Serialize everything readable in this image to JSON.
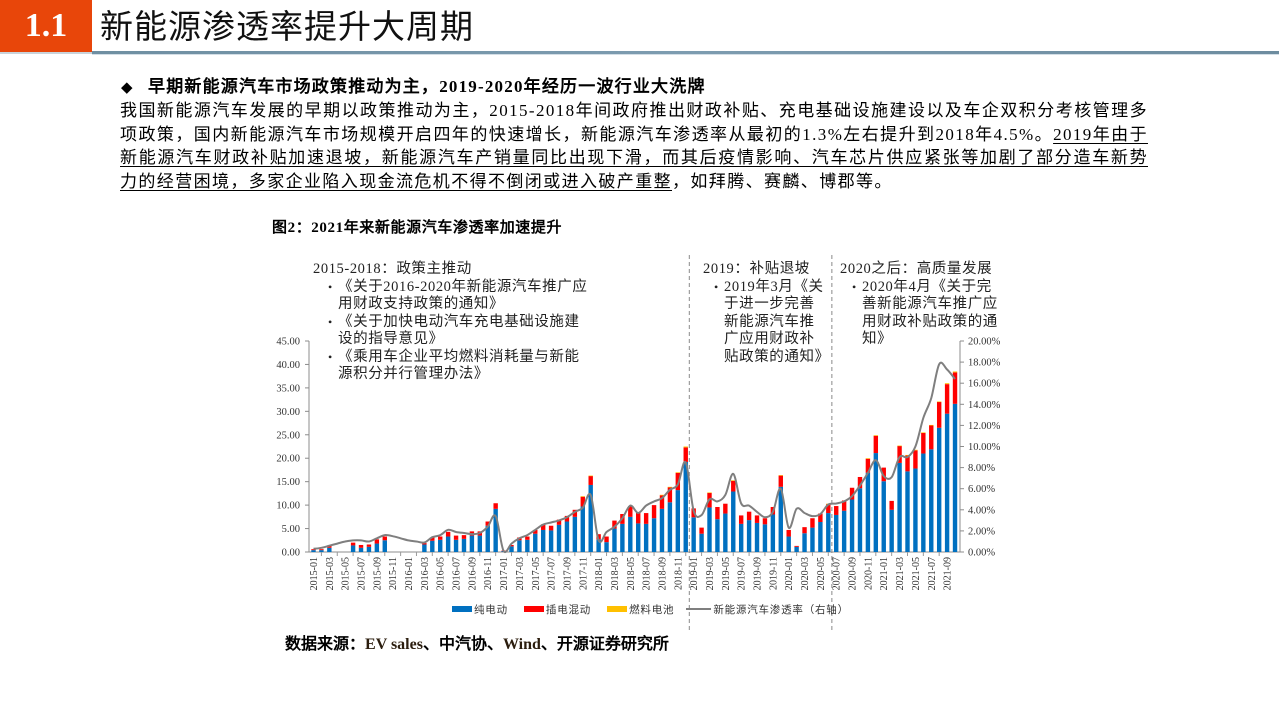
{
  "header": {
    "section_number": "1.1",
    "title": "新能源渗透率提升大周期",
    "accent_color": "#E8460A"
  },
  "body": {
    "bullet_icon": "◆",
    "heading": "早期新能源汽车市场政策推动为主，2019-2020年经历一波行业大洗牌",
    "lines": [
      [
        {
          "text": "我国新能源汽车发展的早期以政策推动为主，2015-2018年间政府推出财政补贴、充电基础设施建设以及车企双积分考核管理多",
          "underline": false
        }
      ],
      [
        {
          "text": "项政策，国内新能源汽车市场规模开启四年的快速增长，新能源汽车渗透率从最初的1.3%左右提升到2018年4.5%。",
          "underline": false
        },
        {
          "text": "2019年由于",
          "underline": true
        }
      ],
      [
        {
          "text": "新能源汽车财政补贴加速退坡，新能源汽车产销量同比出现下滑，而其后疫情影响、汽车芯片供应紧张等加剧了部分造车新势",
          "underline": true
        }
      ],
      [
        {
          "text": "力的经营困境，多家企业陷入现金流危机不得不倒闭或进入破产重整",
          "underline": true
        },
        {
          "text": "，如拜腾、赛麟、博郡等。",
          "underline": false
        }
      ]
    ]
  },
  "figure": {
    "title": "图2：2021年来新能源汽车渗透率加速提升",
    "source": {
      "label": "数据来源：",
      "parts": [
        "EV sales",
        "、中汽协、",
        "Wind",
        "、开源证券研究所"
      ]
    }
  },
  "chart_data": {
    "type": "bar",
    "subtype": "stacked bar + line (dual axis)",
    "title": "图2：2021年来新能源汽车渗透率加速提升",
    "xlabel": "",
    "ylabel": "",
    "ylim": [
      0,
      45
    ],
    "y2lim": [
      0,
      20
    ],
    "yticks": [
      "0.00",
      "5.00",
      "10.00",
      "15.00",
      "20.00",
      "25.00",
      "30.00",
      "35.00",
      "40.00",
      "45.00"
    ],
    "y2ticks": [
      "0.00%",
      "2.00%",
      "4.00%",
      "6.00%",
      "8.00%",
      "10.00%",
      "12.00%",
      "14.00%",
      "16.00%",
      "18.00%",
      "20.00%"
    ],
    "grid": false,
    "legend_position": "bottom",
    "x": [
      "2015-01",
      "2015-02",
      "2015-03",
      "2015-04",
      "2015-05",
      "2015-06",
      "2015-07",
      "2015-08",
      "2015-09",
      "2015-10",
      "2015-11",
      "2015-12",
      "2016-01",
      "2016-02",
      "2016-03",
      "2016-04",
      "2016-05",
      "2016-06",
      "2016-07",
      "2016-08",
      "2016-09",
      "2016-10",
      "2016-11",
      "2016-12",
      "2017-01",
      "2017-02",
      "2017-03",
      "2017-04",
      "2017-05",
      "2017-06",
      "2017-07",
      "2017-08",
      "2017-09",
      "2017-10",
      "2017-11",
      "2017-12",
      "2018-01",
      "2018-02",
      "2018-03",
      "2018-04",
      "2018-05",
      "2018-06",
      "2018-07",
      "2018-08",
      "2018-09",
      "2018-10",
      "2018-11",
      "2018-12",
      "2019-01",
      "2019-02",
      "2019-03",
      "2019-04",
      "2019-05",
      "2019-06",
      "2019-07",
      "2019-08",
      "2019-09",
      "2019-10",
      "2019-11",
      "2019-12",
      "2020-01",
      "2020-02",
      "2020-03",
      "2020-04",
      "2020-05",
      "2020-06",
      "2020-07",
      "2020-08",
      "2020-09",
      "2020-10",
      "2020-11",
      "2020-12",
      "2021-01",
      "2021-02",
      "2021-03",
      "2021-04",
      "2021-05",
      "2021-06",
      "2021-07",
      "2021-08",
      "2021-09",
      "2021-10"
    ],
    "series": [
      {
        "name": "纯电动",
        "type": "bar",
        "stack": "sales",
        "axis": "left",
        "color": "#0070C0",
        "values": [
          0.4,
          0.4,
          0.9,
          null,
          null,
          1.4,
          0.9,
          1.1,
          1.8,
          2.5,
          null,
          null,
          null,
          null,
          1.6,
          2.4,
          2.6,
          3.3,
          2.6,
          2.8,
          3.5,
          3.5,
          5.6,
          9.2,
          0.2,
          1.2,
          2.5,
          2.6,
          3.9,
          4.7,
          4.6,
          5.8,
          6.5,
          7.5,
          9.7,
          14.3,
          2.7,
          2.1,
          5.0,
          6.0,
          7.5,
          6.1,
          6.0,
          7.2,
          9.2,
          10.6,
          13.2,
          19.2,
          7.4,
          3.9,
          9.5,
          7.0,
          8.2,
          12.9,
          6.0,
          6.8,
          6.2,
          5.9,
          8.0,
          13.9,
          3.3,
          1.1,
          4.0,
          5.2,
          6.4,
          8.3,
          7.9,
          8.8,
          11.2,
          13.6,
          16.9,
          21.1,
          15.1,
          9.0,
          19.0,
          17.2,
          17.8,
          21.0,
          21.9,
          26.5,
          29.5,
          31.6
        ]
      },
      {
        "name": "插电混动",
        "type": "bar",
        "stack": "sales",
        "axis": "left",
        "color": "#FF0000",
        "values": [
          0.2,
          0.2,
          0.4,
          null,
          null,
          0.6,
          0.6,
          0.5,
          0.9,
          0.8,
          null,
          null,
          null,
          null,
          0.3,
          0.7,
          0.7,
          1.0,
          0.9,
          0.8,
          0.9,
          0.9,
          0.9,
          1.2,
          0.1,
          0.3,
          0.6,
          0.7,
          0.8,
          1.2,
          1.0,
          1.1,
          1.2,
          1.5,
          2.1,
          1.9,
          1.1,
          1.2,
          1.7,
          2.1,
          2.3,
          2.3,
          2.3,
          2.8,
          2.9,
          3.2,
          3.7,
          3.1,
          1.9,
          1.3,
          3.1,
          2.6,
          2.1,
          2.3,
          1.8,
          1.8,
          1.6,
          1.3,
          1.6,
          2.4,
          1.4,
          0.2,
          1.3,
          2.0,
          1.8,
          1.9,
          1.9,
          2.2,
          2.5,
          2.4,
          3.0,
          3.7,
          2.9,
          1.9,
          3.6,
          3.4,
          3.9,
          4.4,
          5.1,
          5.5,
          6.3,
          6.7
        ]
      },
      {
        "name": "燃料电池",
        "type": "bar",
        "stack": "sales",
        "axis": "left",
        "color": "#FFC000",
        "values": [
          0,
          0,
          0,
          null,
          null,
          0,
          0,
          0,
          0,
          0,
          null,
          null,
          null,
          null,
          0,
          0,
          0,
          0,
          0,
          0,
          0,
          0,
          0,
          0,
          0,
          0,
          0,
          0,
          0,
          0,
          0,
          0,
          0,
          0,
          0.1,
          0.1,
          0,
          0,
          0,
          0,
          0,
          0,
          0,
          0,
          0.1,
          0.1,
          0.1,
          0.2,
          0,
          0,
          0.1,
          0,
          0,
          0.1,
          0,
          0,
          0,
          0,
          0,
          0.1,
          0,
          0,
          0,
          0,
          0,
          0.1,
          0,
          0,
          0,
          0,
          0.1,
          0.1,
          0,
          0,
          0.1,
          0.1,
          0.1,
          0.1,
          0.1,
          0.1,
          0.2,
          0.2
        ]
      },
      {
        "name": "新能源汽车渗透率（右轴）",
        "type": "line",
        "axis": "right",
        "color": "#7F7F7F",
        "unit": "%",
        "values": [
          0.3,
          0.4,
          0.6,
          0.8,
          1.0,
          1.1,
          1.1,
          1.0,
          1.3,
          1.6,
          1.5,
          1.3,
          1.1,
          1.0,
          0.9,
          1.4,
          1.6,
          2.1,
          1.9,
          1.8,
          1.7,
          1.8,
          2.4,
          3.4,
          0.1,
          0.8,
          1.3,
          1.6,
          2.1,
          2.6,
          2.8,
          3.0,
          3.3,
          3.8,
          4.2,
          5.4,
          1.1,
          1.9,
          2.4,
          3.2,
          4.4,
          3.7,
          4.4,
          4.8,
          5.1,
          5.9,
          6.4,
          8.5,
          3.9,
          3.5,
          5.0,
          4.8,
          5.4,
          7.4,
          4.6,
          4.4,
          3.8,
          3.3,
          3.8,
          6.0,
          2.3,
          4.1,
          3.7,
          3.4,
          3.6,
          4.5,
          4.6,
          4.8,
          5.3,
          6.3,
          7.5,
          8.7,
          7.2,
          7.1,
          9.0,
          9.0,
          10.0,
          12.7,
          14.6,
          17.8,
          17.3,
          16.4
        ]
      }
    ],
    "legend": [
      {
        "label": "纯电动",
        "color": "#0070C0",
        "shape": "rect"
      },
      {
        "label": "插电混动",
        "color": "#FF0000",
        "shape": "rect"
      },
      {
        "label": "燃料电池",
        "color": "#FFC000",
        "shape": "rect"
      },
      {
        "label": "新能源汽车渗透率（右轴）",
        "color": "#7F7F7F",
        "shape": "line"
      }
    ],
    "period_dividers_after": [
      "2018-12",
      "2020-06"
    ],
    "annotation_bullet": "•",
    "annotations": [
      {
        "title": "2015-2018：政策主推动",
        "items": [
          [
            "《关于2016-2020年新能源汽车推广应",
            "用财政支持政策的通知》"
          ],
          [
            "《关于加快电动汽车充电基础设施建",
            "设的指导意见》"
          ],
          [
            "《乘用车企业平均燃料消耗量与新能",
            "源积分并行管理办法》"
          ]
        ]
      },
      {
        "title": "2019：补贴退坡",
        "items": [
          [
            "2019年3月《关",
            "于进一步完善",
            "新能源汽车推",
            "广应用财政补",
            "贴政策的通知》"
          ]
        ]
      },
      {
        "title": "2020之后：高质量发展",
        "items": [
          [
            "2020年4月《关于完",
            "善新能源汽车推广应",
            "用财政补贴政策的通",
            "知》"
          ]
        ]
      }
    ]
  }
}
